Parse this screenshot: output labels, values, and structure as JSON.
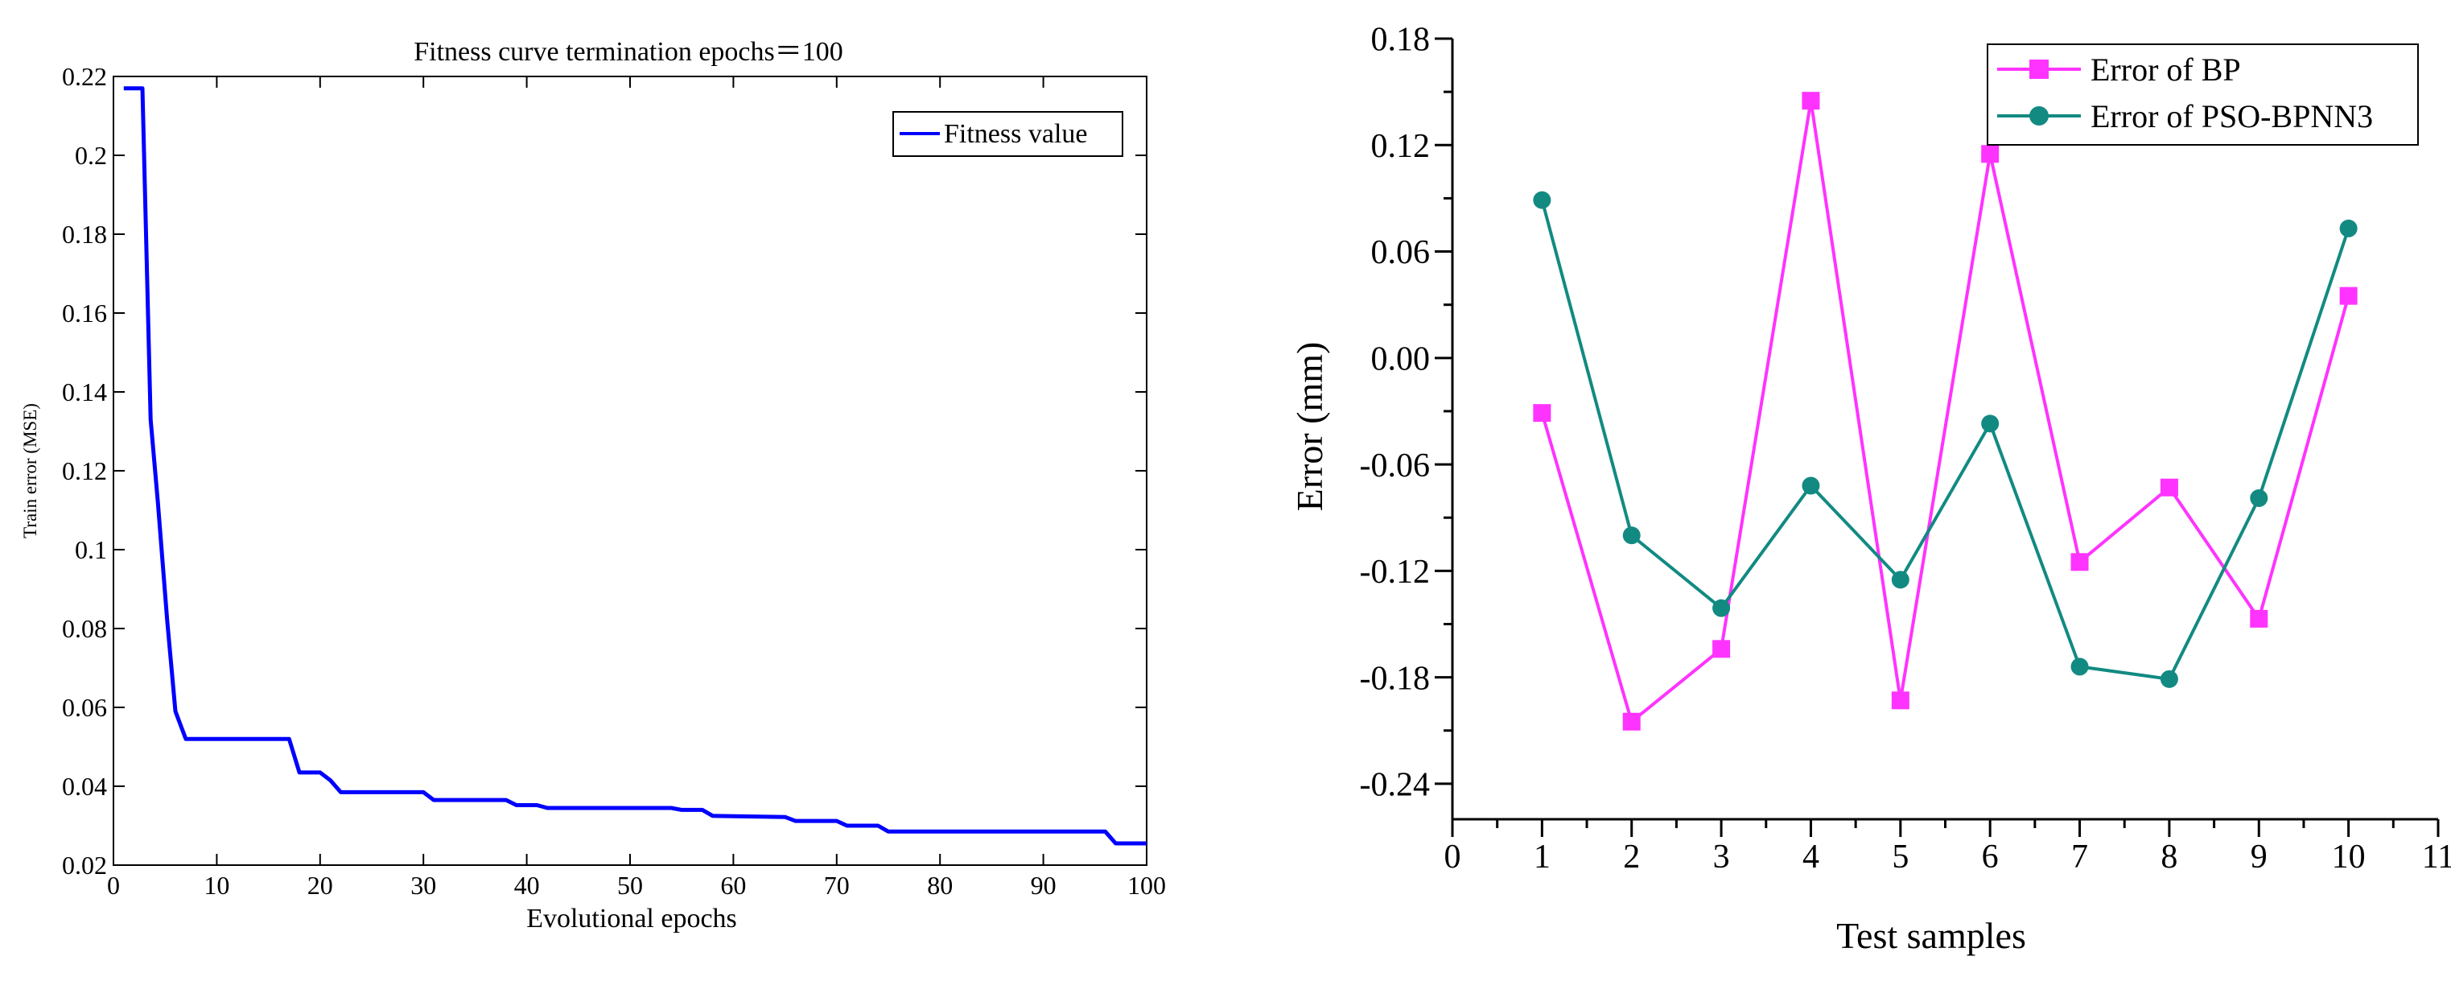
{
  "chart_data": [
    {
      "type": "line",
      "title": "Fitness curve termination epochs＝100",
      "xlabel": "Evolutional epochs",
      "ylabel": "Train error (MSE)",
      "xlim": [
        0,
        100
      ],
      "ylim": [
        0.02,
        0.22
      ],
      "xticks": [
        0,
        10,
        20,
        30,
        40,
        50,
        60,
        70,
        80,
        90,
        100
      ],
      "yticks": [
        0.02,
        0.04,
        0.06,
        0.08,
        0.1,
        0.12,
        0.14,
        0.16,
        0.18,
        0.2,
        0.22
      ],
      "ytick_labels": [
        "0.02",
        "0.04",
        "0.06",
        "0.08",
        "0.1",
        "0.12",
        "0.14",
        "0.16",
        "0.18",
        "0.2",
        "0.22"
      ],
      "grid": false,
      "legend_position": "top-right",
      "series": [
        {
          "name": "Fitness value",
          "color": "#0000ff",
          "x": [
            1,
            2.8,
            3.6,
            4.3,
            5.2,
            6.0,
            7.0,
            17.0,
            18.0,
            20.0,
            21.0,
            22.0,
            30.0,
            31.0,
            38.0,
            39.0,
            41.0,
            42.0,
            54.0,
            55.0,
            57.0,
            58.0,
            65.0,
            66.0,
            70.0,
            71.0,
            74.0,
            75.0,
            96.0,
            97.0,
            100.0
          ],
          "y": [
            0.217,
            0.217,
            0.133,
            0.112,
            0.082,
            0.059,
            0.052,
            0.052,
            0.0435,
            0.0435,
            0.0415,
            0.0385,
            0.0385,
            0.0365,
            0.0365,
            0.0352,
            0.0352,
            0.0345,
            0.0345,
            0.034,
            0.034,
            0.0325,
            0.0322,
            0.0312,
            0.0312,
            0.03,
            0.03,
            0.0285,
            0.0285,
            0.0255,
            0.0255
          ]
        }
      ]
    },
    {
      "type": "line",
      "title": "",
      "xlabel": "Test samples",
      "ylabel": "Error (mm)",
      "xlim": [
        0,
        11
      ],
      "ylim": [
        -0.26,
        0.18
      ],
      "xticks": [
        0,
        1,
        2,
        3,
        4,
        5,
        6,
        7,
        8,
        9,
        10,
        11
      ],
      "yticks": [
        -0.24,
        -0.18,
        -0.12,
        -0.06,
        0.0,
        0.06,
        0.12,
        0.18
      ],
      "ytick_labels": [
        "-0.24",
        "-0.18",
        "-0.12",
        "-0.06",
        "0.00",
        "0.06",
        "0.12",
        "0.18"
      ],
      "grid": false,
      "legend_position": "top-right",
      "series": [
        {
          "name": "Error of BP",
          "color": "#ff33ff",
          "marker": "square",
          "x": [
            1,
            2,
            3,
            4,
            5,
            6,
            7,
            8,
            9,
            10
          ],
          "y": [
            -0.031,
            -0.205,
            -0.164,
            0.145,
            -0.193,
            0.115,
            -0.115,
            -0.073,
            -0.147,
            0.035
          ]
        },
        {
          "name": "Error of PSO-BPNN3",
          "color": "#128a82",
          "marker": "circle",
          "x": [
            1,
            2,
            3,
            4,
            5,
            6,
            7,
            8,
            9,
            10
          ],
          "y": [
            0.089,
            -0.1,
            -0.141,
            -0.072,
            -0.125,
            -0.037,
            -0.174,
            -0.181,
            -0.079,
            0.073
          ]
        }
      ]
    }
  ]
}
